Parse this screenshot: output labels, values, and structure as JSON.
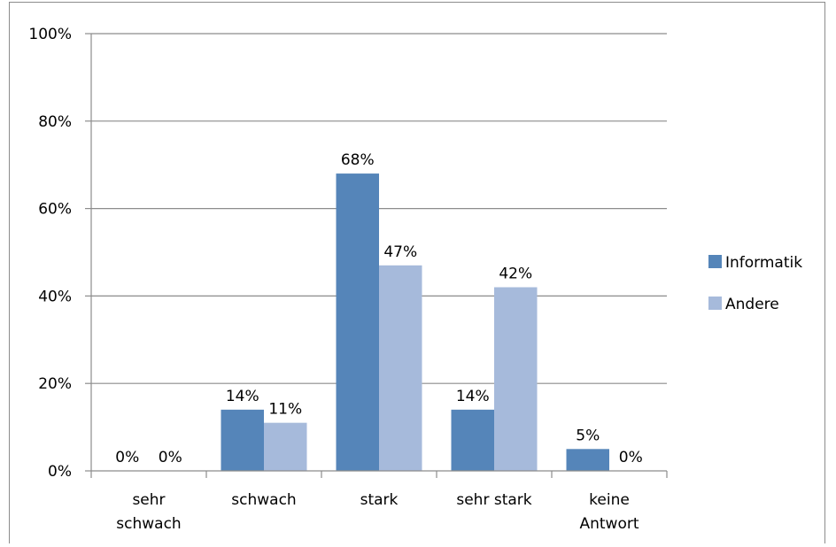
{
  "chart_data": {
    "type": "bar",
    "title": "",
    "xlabel": "",
    "ylabel": "",
    "categories": [
      [
        "sehr",
        "schwach"
      ],
      [
        "schwach"
      ],
      [
        "stark"
      ],
      [
        "sehr stark"
      ],
      [
        "keine",
        "Antwort"
      ]
    ],
    "series": [
      {
        "name": "Informatik",
        "color": "#5585b9",
        "values": [
          0,
          14,
          68,
          14,
          5
        ],
        "labels": [
          "0%",
          "14%",
          "68%",
          "14%",
          "5%"
        ]
      },
      {
        "name": "Andere",
        "color": "#a6badb",
        "values": [
          0,
          11,
          47,
          42,
          0
        ],
        "labels": [
          "0%",
          "11%",
          "47%",
          "42%",
          "0%"
        ]
      }
    ],
    "ylim": [
      0,
      100
    ],
    "yticks": [
      0,
      20,
      40,
      60,
      80,
      100
    ],
    "ytick_labels": [
      "0%",
      "20%",
      "40%",
      "60%",
      "80%",
      "100%"
    ],
    "grid": true,
    "legend_position": "right"
  }
}
